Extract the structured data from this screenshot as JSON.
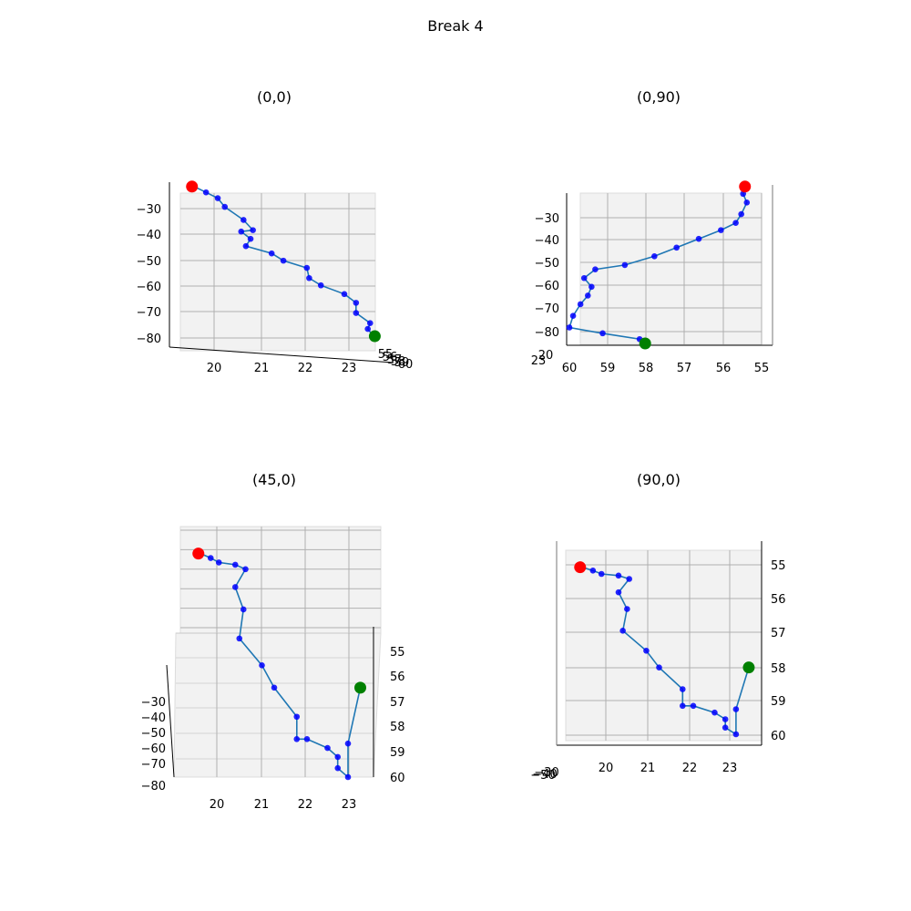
{
  "figure": {
    "title": "Break 4"
  },
  "colors": {
    "line": "#1f77b4",
    "point": "#0000ff",
    "start": "#ff0000",
    "end": "#008000",
    "grid": "#b0b0b0",
    "pane": "#f2f2f2"
  },
  "chart_data": [
    {
      "type": "line",
      "title": "(0,0)",
      "view": "x-z",
      "x_ticks": [
        "20",
        "21",
        "22",
        "23"
      ],
      "y_ticks": [
        "−30",
        "−40",
        "−50",
        "−60",
        "−70",
        "−80"
      ],
      "depth_ticks": [
        "55",
        "56",
        "57",
        "58",
        "59",
        "60"
      ],
      "xlim": [
        19.0,
        23.8
      ],
      "ylim": [
        -84,
        -26
      ],
      "points": [
        [
          19.55,
          -27.5
        ],
        [
          19.8,
          -29.5
        ],
        [
          20.05,
          -31.5
        ],
        [
          20.2,
          -34.5
        ],
        [
          20.6,
          -39
        ],
        [
          20.8,
          -42.5
        ],
        [
          20.55,
          -43
        ],
        [
          20.75,
          -45.5
        ],
        [
          20.65,
          -48
        ],
        [
          21.2,
          -50.5
        ],
        [
          21.45,
          -53
        ],
        [
          21.95,
          -55.5
        ],
        [
          22.0,
          -59
        ],
        [
          22.25,
          -61.5
        ],
        [
          22.75,
          -64.5
        ],
        [
          23.0,
          -67.5
        ],
        [
          23.0,
          -71
        ],
        [
          23.3,
          -74.5
        ],
        [
          23.25,
          -76.5
        ],
        [
          23.35,
          -78.5
        ]
      ],
      "start": [
        19.5,
        -27.5
      ],
      "end": [
        23.4,
        -79
      ]
    },
    {
      "type": "line",
      "title": "(0,90)",
      "view": "y-z",
      "x_ticks": [
        "60",
        "59",
        "58",
        "57",
        "56",
        "55"
      ],
      "y_ticks": [
        "−30",
        "−40",
        "−50",
        "−60",
        "−70",
        "−80"
      ],
      "depth_ticks": [
        "20",
        "23"
      ],
      "xlim": [
        60.0,
        54.8
      ],
      "ylim": [
        -84,
        -26
      ],
      "points": [
        [
          55.3,
          -30
        ],
        [
          55.2,
          -33
        ],
        [
          55.35,
          -37
        ],
        [
          55.5,
          -40
        ],
        [
          55.9,
          -42.5
        ],
        [
          56.5,
          -45.5
        ],
        [
          57.1,
          -48.5
        ],
        [
          57.7,
          -51.5
        ],
        [
          58.5,
          -54.5
        ],
        [
          59.3,
          -56
        ],
        [
          59.6,
          -59
        ],
        [
          59.4,
          -62
        ],
        [
          59.5,
          -65
        ],
        [
          59.7,
          -68
        ],
        [
          59.9,
          -72
        ],
        [
          60.0,
          -76
        ],
        [
          59.1,
          -78
        ],
        [
          58.1,
          -80
        ]
      ],
      "start": [
        55.25,
        -27.5
      ],
      "end": [
        57.95,
        -81.5
      ]
    },
    {
      "type": "line",
      "title": "(45,0)",
      "view": "x-y-oblique",
      "x_ticks": [
        "20",
        "21",
        "22",
        "23"
      ],
      "y_ticks": [
        "55",
        "56",
        "57",
        "58",
        "59",
        "60"
      ],
      "depth_ticks": [
        "−30",
        "−40",
        "−50",
        "−60",
        "−70",
        "−80"
      ],
      "xlim": [
        19.0,
        23.8
      ],
      "ylim": [
        54.6,
        60.0
      ],
      "points": [
        [
          19.6,
          55.0
        ],
        [
          19.85,
          55.1
        ],
        [
          20.05,
          55.2
        ],
        [
          20.45,
          55.25
        ],
        [
          20.7,
          55.35
        ],
        [
          20.45,
          55.75
        ],
        [
          20.65,
          56.25
        ],
        [
          20.55,
          56.9
        ],
        [
          21.1,
          57.5
        ],
        [
          21.4,
          58.0
        ],
        [
          21.95,
          58.65
        ],
        [
          21.95,
          59.15
        ],
        [
          22.2,
          59.15
        ],
        [
          22.7,
          59.35
        ],
        [
          22.95,
          59.55
        ],
        [
          22.95,
          59.8
        ],
        [
          23.2,
          60.0
        ],
        [
          23.2,
          59.25
        ]
      ],
      "start": [
        19.55,
        55.0
      ],
      "end": [
        23.5,
        58.0
      ]
    },
    {
      "type": "line",
      "title": "(90,0)",
      "view": "x-y",
      "x_ticks": [
        "20",
        "21",
        "22",
        "23"
      ],
      "y_ticks": [
        "55",
        "56",
        "57",
        "58",
        "59",
        "60"
      ],
      "depth_ticks": [
        "−30",
        "−40",
        "−50",
        "−60",
        "−70",
        "−80"
      ],
      "xlim": [
        19.0,
        23.8
      ],
      "ylim": [
        54.6,
        60.0
      ],
      "points": [
        [
          19.6,
          55.0
        ],
        [
          19.85,
          55.1
        ],
        [
          20.05,
          55.2
        ],
        [
          20.45,
          55.25
        ],
        [
          20.7,
          55.35
        ],
        [
          20.45,
          55.75
        ],
        [
          20.65,
          56.25
        ],
        [
          20.55,
          56.9
        ],
        [
          21.1,
          57.5
        ],
        [
          21.4,
          58.0
        ],
        [
          21.95,
          58.65
        ],
        [
          21.95,
          59.15
        ],
        [
          22.2,
          59.15
        ],
        [
          22.7,
          59.35
        ],
        [
          22.95,
          59.55
        ],
        [
          22.95,
          59.8
        ],
        [
          23.2,
          60.0
        ],
        [
          23.2,
          59.25
        ]
      ],
      "start": [
        19.55,
        55.0
      ],
      "end": [
        23.5,
        58.0
      ]
    }
  ]
}
